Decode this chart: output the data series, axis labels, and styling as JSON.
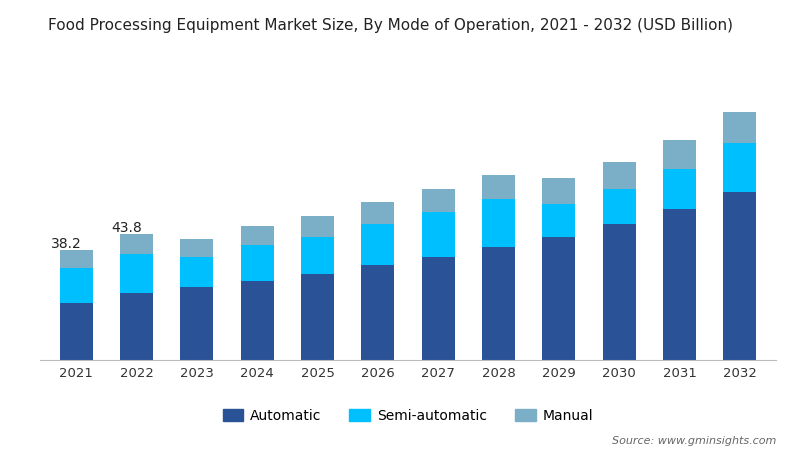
{
  "title": "Food Processing Equipment Market Size, By Mode of Operation, 2021 - 2032 (USD Billion)",
  "years": [
    2021,
    2022,
    2023,
    2024,
    2025,
    2026,
    2027,
    2028,
    2029,
    2030,
    2031,
    2032
  ],
  "automatic": [
    20.0,
    23.5,
    25.5,
    27.5,
    30.0,
    33.0,
    36.0,
    39.5,
    43.0,
    47.5,
    52.5,
    58.5
  ],
  "semi_automatic": [
    12.0,
    13.5,
    10.5,
    12.5,
    13.0,
    14.5,
    15.5,
    16.5,
    11.5,
    12.0,
    14.0,
    17.0
  ],
  "manual": [
    6.2,
    6.8,
    6.2,
    6.8,
    7.0,
    7.5,
    8.0,
    8.5,
    9.0,
    9.5,
    10.0,
    11.0
  ],
  "annotations": [
    {
      "year_idx": 0,
      "text": "38.2"
    },
    {
      "year_idx": 1,
      "text": "43.8"
    }
  ],
  "color_automatic": "#2A5297",
  "color_semi_automatic": "#00BFFF",
  "color_manual": "#7BAFC8",
  "background_color": "#ffffff",
  "legend_labels": [
    "Automatic",
    "Semi-automatic",
    "Manual"
  ],
  "source_text": "Source: www.gminsights.com",
  "title_fontsize": 11,
  "annotation_fontsize": 10,
  "ylim": [
    0,
    105
  ]
}
